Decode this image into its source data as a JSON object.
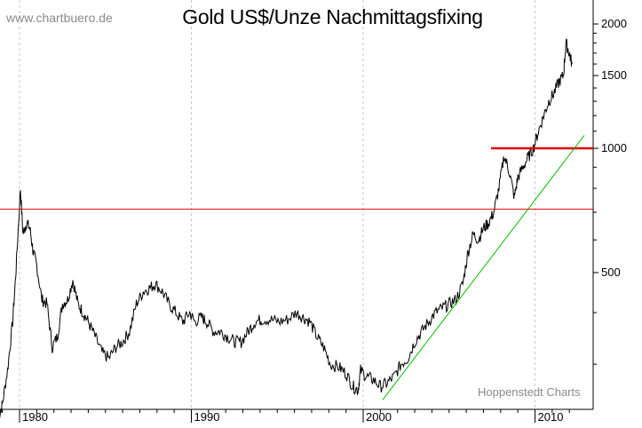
{
  "header": {
    "title": "Gold US$/Unze Nachmittagsfixing",
    "watermark": "www.chartbuero.de",
    "credit": "Hoppenstedt Charts"
  },
  "colors": {
    "price_line": "#000000",
    "resistance_line": "#e00000",
    "trend_line": "#00c000",
    "grid": "#c8c8c8",
    "axis": "#000000"
  },
  "axes": {
    "y_ticks": [
      {
        "label": "2000",
        "value": 2000
      },
      {
        "label": "1500",
        "value": 1500
      },
      {
        "label": "1000",
        "value": 1000
      },
      {
        "label": "500",
        "value": 500
      }
    ],
    "x_ticks": [
      {
        "label": "1980",
        "value": 1980
      },
      {
        "label": "1990",
        "value": 1990
      },
      {
        "label": "2000",
        "value": 2000
      },
      {
        "label": "2010",
        "value": 2010
      }
    ]
  },
  "chart_data": {
    "type": "line",
    "title": "Gold US$/Unze Nachmittagsfixing",
    "xlabel": "",
    "ylabel": "",
    "y_scale": "log",
    "xlim": [
      1978.8,
      2012.2
    ],
    "ylim": [
      240,
      2200
    ],
    "grid": "vertical dashed at decades",
    "legend": "none",
    "series": [
      {
        "name": "Gold US$/Unze",
        "x": [
          1978.8,
          1979.0,
          1979.3,
          1979.6,
          1979.8,
          1980.05,
          1980.2,
          1980.4,
          1980.6,
          1980.8,
          1981.0,
          1981.3,
          1981.6,
          1981.9,
          1982.2,
          1982.5,
          1982.8,
          1983.1,
          1983.4,
          1983.7,
          1984.0,
          1984.4,
          1984.8,
          1985.2,
          1985.6,
          1986.0,
          1986.4,
          1986.8,
          1987.2,
          1987.6,
          1987.9,
          1988.3,
          1988.7,
          1989.1,
          1989.5,
          1989.9,
          1990.2,
          1990.6,
          1990.9,
          1991.3,
          1991.7,
          1992.1,
          1992.5,
          1992.9,
          1993.3,
          1993.7,
          1994.1,
          1994.6,
          1995.1,
          1995.6,
          1996.1,
          1996.5,
          1996.9,
          1997.3,
          1997.7,
          1998.1,
          1998.6,
          1999.0,
          1999.4,
          1999.7,
          1999.85,
          2000.2,
          2000.6,
          2001.0,
          2001.4,
          2001.8,
          2002.2,
          2002.6,
          2003.0,
          2003.4,
          2003.8,
          2004.2,
          2004.6,
          2005.0,
          2005.4,
          2005.8,
          2006.1,
          2006.4,
          2006.7,
          2007.0,
          2007.3,
          2007.6,
          2007.9,
          2008.2,
          2008.5,
          2008.8,
          2009.0,
          2009.3,
          2009.6,
          2009.9,
          2010.2,
          2010.5,
          2010.8,
          2011.1,
          2011.4,
          2011.65,
          2011.8,
          2012.0,
          2012.15
        ],
        "values": [
          225,
          240,
          290,
          380,
          510,
          800,
          620,
          660,
          640,
          560,
          520,
          430,
          420,
          330,
          350,
          420,
          430,
          480,
          420,
          400,
          380,
          350,
          320,
          310,
          330,
          340,
          360,
          420,
          450,
          460,
          470,
          450,
          420,
          400,
          380,
          400,
          380,
          390,
          380,
          360,
          360,
          350,
          340,
          340,
          360,
          380,
          385,
          385,
          380,
          385,
          400,
          390,
          380,
          350,
          330,
          300,
          295,
          285,
          265,
          260,
          290,
          280,
          275,
          265,
          270,
          280,
          300,
          310,
          340,
          360,
          380,
          400,
          410,
          420,
          430,
          470,
          560,
          620,
          600,
          640,
          660,
          700,
          800,
          960,
          880,
          760,
          850,
          900,
          950,
          1000,
          1100,
          1200,
          1300,
          1360,
          1450,
          1500,
          1800,
          1700,
          1600
        ],
        "approximate": true
      },
      {
        "name": "Horizontale Linie (rot, dünn)",
        "x": [
          1978.8,
          2012.2
        ],
        "values": [
          712,
          712
        ]
      },
      {
        "name": "Horizontale Linie (rot, dick)",
        "x": [
          2005.9,
          2012.2
        ],
        "values": [
          1000,
          1000
        ]
      },
      {
        "name": "Trendlinie (grün)",
        "x": [
          2000.5,
          2012.0
        ],
        "values": [
          246,
          1075
        ]
      }
    ]
  }
}
